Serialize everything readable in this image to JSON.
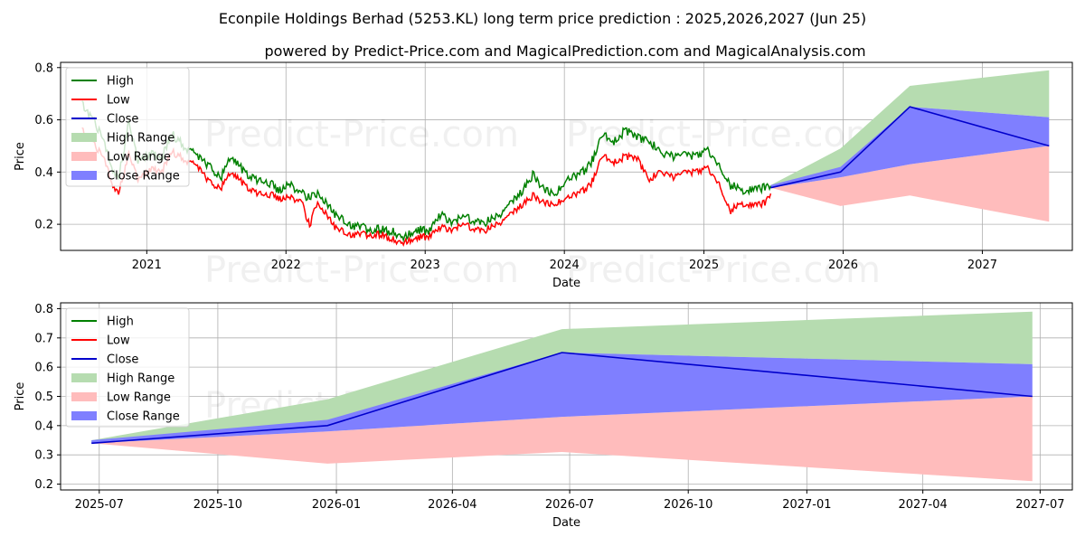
{
  "title": "Econpile Holdings Berhad (5253.KL) long term price prediction : 2025,2026,2027 (Jun 25)",
  "subtitle": "powered by Predict-Price.com and MagicalPrediction.com and MagicalAnalysis.com",
  "watermark": "Predict-Price.com",
  "colors": {
    "high": "#008000",
    "low": "#ff0000",
    "close": "#0000cc",
    "high_range": "#b6dcb0",
    "low_range": "#ffbcbc",
    "close_range": "#7f7fff"
  },
  "chart_data": [
    {
      "type": "line",
      "xlabel": "Date",
      "ylabel": "Price",
      "xlim": [
        "2020-05-20",
        "2027-08-25"
      ],
      "ylim": [
        0.1,
        0.82
      ],
      "x_ticks": [
        "2021",
        "2022",
        "2023",
        "2024",
        "2025",
        "2026",
        "2027"
      ],
      "x_tick_dates": [
        "2021-01-01",
        "2022-01-01",
        "2023-01-01",
        "2024-01-01",
        "2025-01-01",
        "2026-01-01",
        "2027-01-01"
      ],
      "y_ticks": [
        "0.2",
        "0.4",
        "0.6",
        "0.8"
      ],
      "y_tick_values": [
        0.2,
        0.4,
        0.6,
        0.8
      ],
      "grid": true,
      "legend_position": "upper-left",
      "legend": [
        "High",
        "Low",
        "Close",
        "High Range",
        "Low Range",
        "Close Range"
      ],
      "history": {
        "dates": [
          "2020-07-15",
          "2020-08-15",
          "2020-09-15",
          "2020-10-01",
          "2020-10-20",
          "2020-11-15",
          "2020-12-10",
          "2021-01-10",
          "2021-02-10",
          "2021-03-05",
          "2021-04-10",
          "2021-05-15",
          "2021-06-15",
          "2021-07-15",
          "2021-08-10",
          "2021-09-10",
          "2021-10-10",
          "2021-11-10",
          "2021-12-10",
          "2022-01-10",
          "2022-02-10",
          "2022-03-05",
          "2022-03-20",
          "2022-04-10",
          "2022-05-10",
          "2022-06-10",
          "2022-07-10",
          "2022-08-10",
          "2022-09-10",
          "2022-10-10",
          "2022-11-10",
          "2022-12-10",
          "2023-01-10",
          "2023-02-10",
          "2023-03-10",
          "2023-04-10",
          "2023-05-10",
          "2023-06-10",
          "2023-07-10",
          "2023-08-10",
          "2023-09-10",
          "2023-10-10",
          "2023-11-10",
          "2023-12-10",
          "2024-01-10",
          "2024-02-10",
          "2024-03-10",
          "2024-04-10",
          "2024-05-10",
          "2024-06-10",
          "2024-07-10",
          "2024-08-10",
          "2024-09-10",
          "2024-10-10",
          "2024-11-10",
          "2024-12-10",
          "2025-01-10",
          "2025-02-10",
          "2025-03-10",
          "2025-04-10",
          "2025-05-10",
          "2025-06-10",
          "2025-06-25"
        ],
        "high": [
          0.66,
          0.6,
          0.5,
          0.42,
          0.38,
          0.59,
          0.44,
          0.47,
          0.45,
          0.55,
          0.5,
          0.46,
          0.42,
          0.38,
          0.46,
          0.41,
          0.37,
          0.37,
          0.33,
          0.35,
          0.32,
          0.3,
          0.32,
          0.29,
          0.24,
          0.2,
          0.19,
          0.18,
          0.18,
          0.17,
          0.15,
          0.18,
          0.17,
          0.24,
          0.21,
          0.23,
          0.21,
          0.21,
          0.23,
          0.27,
          0.32,
          0.39,
          0.33,
          0.32,
          0.37,
          0.39,
          0.43,
          0.54,
          0.52,
          0.56,
          0.53,
          0.52,
          0.47,
          0.46,
          0.47,
          0.46,
          0.49,
          0.42,
          0.35,
          0.33,
          0.33,
          0.34,
          0.35
        ],
        "low": [
          0.56,
          0.51,
          0.44,
          0.36,
          0.32,
          0.47,
          0.37,
          0.41,
          0.4,
          0.48,
          0.45,
          0.42,
          0.36,
          0.34,
          0.4,
          0.36,
          0.32,
          0.32,
          0.3,
          0.3,
          0.29,
          0.19,
          0.28,
          0.25,
          0.19,
          0.16,
          0.16,
          0.16,
          0.16,
          0.14,
          0.13,
          0.15,
          0.15,
          0.19,
          0.18,
          0.2,
          0.18,
          0.18,
          0.2,
          0.23,
          0.27,
          0.31,
          0.28,
          0.28,
          0.3,
          0.32,
          0.35,
          0.46,
          0.44,
          0.46,
          0.45,
          0.37,
          0.4,
          0.38,
          0.4,
          0.4,
          0.42,
          0.35,
          0.25,
          0.28,
          0.27,
          0.28,
          0.32
        ],
        "close": [
          0.61,
          0.55,
          0.47,
          0.39,
          0.35,
          0.53,
          0.4,
          0.44,
          0.43,
          0.51,
          0.47,
          0.44,
          0.39,
          0.36,
          0.43,
          0.38,
          0.35,
          0.34,
          0.31,
          0.33,
          0.31,
          0.22,
          0.3,
          0.27,
          0.21,
          0.18,
          0.17,
          0.17,
          0.17,
          0.16,
          0.14,
          0.16,
          0.16,
          0.22,
          0.19,
          0.21,
          0.2,
          0.2,
          0.21,
          0.25,
          0.3,
          0.36,
          0.3,
          0.3,
          0.34,
          0.36,
          0.4,
          0.5,
          0.48,
          0.52,
          0.49,
          0.43,
          0.44,
          0.42,
          0.44,
          0.43,
          0.46,
          0.38,
          0.3,
          0.3,
          0.3,
          0.31,
          0.34
        ]
      },
      "forecast": {
        "dates": [
          "2025-06-25",
          "2025-12-25",
          "2026-06-25",
          "2027-06-25"
        ],
        "high_range": {
          "upper": [
            0.35,
            0.49,
            0.73,
            0.79
          ],
          "lower": [
            0.34,
            0.41,
            0.65,
            0.61
          ]
        },
        "low_range": {
          "upper": [
            0.34,
            0.38,
            0.43,
            0.5
          ],
          "lower": [
            0.34,
            0.27,
            0.31,
            0.21
          ]
        },
        "close_range": {
          "upper": [
            0.35,
            0.42,
            0.65,
            0.61
          ],
          "lower": [
            0.34,
            0.38,
            0.43,
            0.5
          ]
        },
        "close": [
          0.34,
          0.4,
          0.65,
          0.5
        ]
      }
    },
    {
      "type": "line",
      "xlabel": "Date",
      "ylabel": "Price",
      "xlim": [
        "2025-06-01",
        "2027-07-26"
      ],
      "ylim": [
        0.18,
        0.82
      ],
      "x_ticks": [
        "2025-07",
        "2025-10",
        "2026-01",
        "2026-04",
        "2026-07",
        "2026-10",
        "2027-01",
        "2027-04",
        "2027-07"
      ],
      "x_tick_dates": [
        "2025-07-01",
        "2025-10-01",
        "2026-01-01",
        "2026-04-01",
        "2026-07-01",
        "2026-10-01",
        "2027-01-01",
        "2027-04-01",
        "2027-07-01"
      ],
      "y_ticks": [
        "0.2",
        "0.3",
        "0.4",
        "0.5",
        "0.6",
        "0.7",
        "0.8"
      ],
      "y_tick_values": [
        0.2,
        0.3,
        0.4,
        0.5,
        0.6,
        0.7,
        0.8
      ],
      "grid": true,
      "legend_position": "upper-left",
      "legend": [
        "High",
        "Low",
        "Close",
        "High Range",
        "Low Range",
        "Close Range"
      ],
      "forecast": {
        "dates": [
          "2025-06-25",
          "2025-12-25",
          "2026-06-25",
          "2027-06-25"
        ],
        "high_range": {
          "upper": [
            0.35,
            0.49,
            0.73,
            0.79
          ],
          "lower": [
            0.34,
            0.41,
            0.65,
            0.61
          ]
        },
        "low_range": {
          "upper": [
            0.34,
            0.38,
            0.43,
            0.5
          ],
          "lower": [
            0.34,
            0.27,
            0.31,
            0.21
          ]
        },
        "close_range": {
          "upper": [
            0.35,
            0.42,
            0.65,
            0.61
          ],
          "lower": [
            0.34,
            0.38,
            0.43,
            0.5
          ]
        },
        "close": [
          0.34,
          0.4,
          0.65,
          0.5
        ]
      }
    }
  ]
}
